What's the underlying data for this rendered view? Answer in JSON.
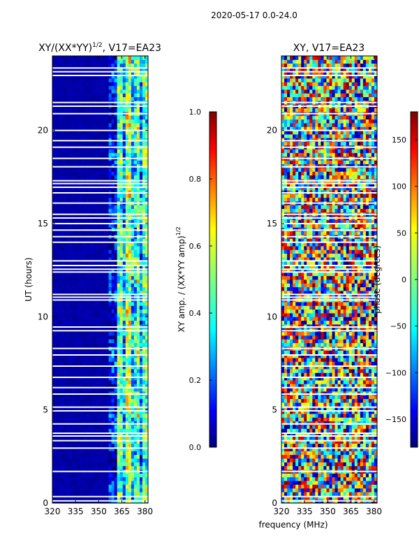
{
  "suptitle": "2020-05-17 0.0-24.0",
  "colors": {
    "jet": [
      "#00007f",
      "#0000ff",
      "#007fff",
      "#00ffff",
      "#7fff7f",
      "#ffff00",
      "#ff7f00",
      "#ff0000",
      "#7f0000"
    ],
    "blank": "#ffffff",
    "axis": "#000000"
  },
  "chart_data": [
    {
      "type": "heatmap",
      "title_main": "XY/(XX*YY)",
      "title_exp": "1/2",
      "title_tail": ", V17=EA23",
      "xlabel": "",
      "ylabel": "UT (hours)",
      "xlim": [
        320,
        382
      ],
      "ylim": [
        0,
        24
      ],
      "xticks": [
        320,
        335,
        350,
        365,
        380
      ],
      "yticks": [
        0,
        5,
        10,
        15,
        20
      ],
      "colorbar": {
        "label_main": "XY amp. / (XX*YY amp)",
        "label_exp": "1/2",
        "range": [
          0.0,
          1.0
        ],
        "ticks": [
          0.0,
          0.2,
          0.4,
          0.6,
          0.8,
          1.0
        ],
        "tick_labels": [
          "0.0",
          "0.2",
          "0.4",
          "0.6",
          "0.8",
          "1.0"
        ]
      },
      "flagged_hours": [
        0.12,
        0.35,
        1.7,
        2.95,
        3.35,
        3.6,
        3.75,
        4.25,
        4.95,
        5.15,
        5.85,
        6.2,
        6.75,
        7.35,
        7.95,
        8.3,
        9.25,
        9.45,
        10.9,
        11.05,
        11.2,
        12.4,
        12.55,
        12.75,
        13.0,
        14.0,
        14.3,
        14.65,
        15.0,
        15.3,
        15.5,
        16.1,
        16.65,
        16.95,
        17.15,
        17.3,
        18.05,
        18.5,
        19.1,
        19.45,
        20.0,
        20.9,
        21.3,
        21.5,
        22.95,
        23.15,
        23.35
      ],
      "band_amplitude_profile": [
        {
          "mhz_from": 320,
          "mhz_to": 357,
          "level": 0.0
        },
        {
          "mhz_from": 357,
          "mhz_to": 362,
          "level": 0.12
        },
        {
          "mhz_from": 362,
          "mhz_to": 366,
          "level": 0.45
        },
        {
          "mhz_from": 366,
          "mhz_to": 368,
          "level": 0.3
        },
        {
          "mhz_from": 368,
          "mhz_to": 371,
          "level": 0.55
        },
        {
          "mhz_from": 371,
          "mhz_to": 374,
          "level": 0.35
        },
        {
          "mhz_from": 374,
          "mhz_to": 377,
          "level": 0.5
        },
        {
          "mhz_from": 377,
          "mhz_to": 379,
          "level": 0.25
        },
        {
          "mhz_from": 379,
          "mhz_to": 382,
          "level": 0.45
        }
      ]
    },
    {
      "type": "heatmap",
      "title_main": "XY, V17=EA23",
      "xlabel": "frequency (MHz)",
      "ylabel": "",
      "xlim": [
        320,
        382
      ],
      "ylim": [
        0,
        24
      ],
      "xticks": [
        320,
        335,
        350,
        365,
        380
      ],
      "yticks": [
        0,
        5,
        10,
        15,
        20
      ],
      "colorbar": {
        "label": "phase (degrees)",
        "range": [
          -180,
          180
        ],
        "ticks": [
          -150,
          -100,
          -50,
          0,
          50,
          100,
          150
        ],
        "tick_labels": [
          "−150",
          "−100",
          "−50",
          "0",
          "50",
          "100",
          "150"
        ]
      },
      "flagged_hours": [
        0.12,
        0.35,
        1.7,
        2.95,
        3.35,
        3.6,
        3.75,
        4.25,
        4.95,
        5.15,
        5.85,
        6.2,
        6.75,
        7.35,
        7.95,
        8.3,
        9.25,
        9.45,
        10.9,
        11.05,
        11.2,
        12.4,
        12.55,
        12.75,
        13.0,
        14.0,
        14.3,
        14.65,
        15.0,
        15.3,
        15.5,
        16.1,
        16.65,
        16.95,
        17.15,
        17.3,
        18.05,
        18.5,
        19.1,
        19.45,
        20.0,
        20.9,
        21.3,
        21.5,
        22.95,
        23.15,
        23.35
      ],
      "phase_character": "noisy, full range -180 to 180 degrees"
    }
  ]
}
